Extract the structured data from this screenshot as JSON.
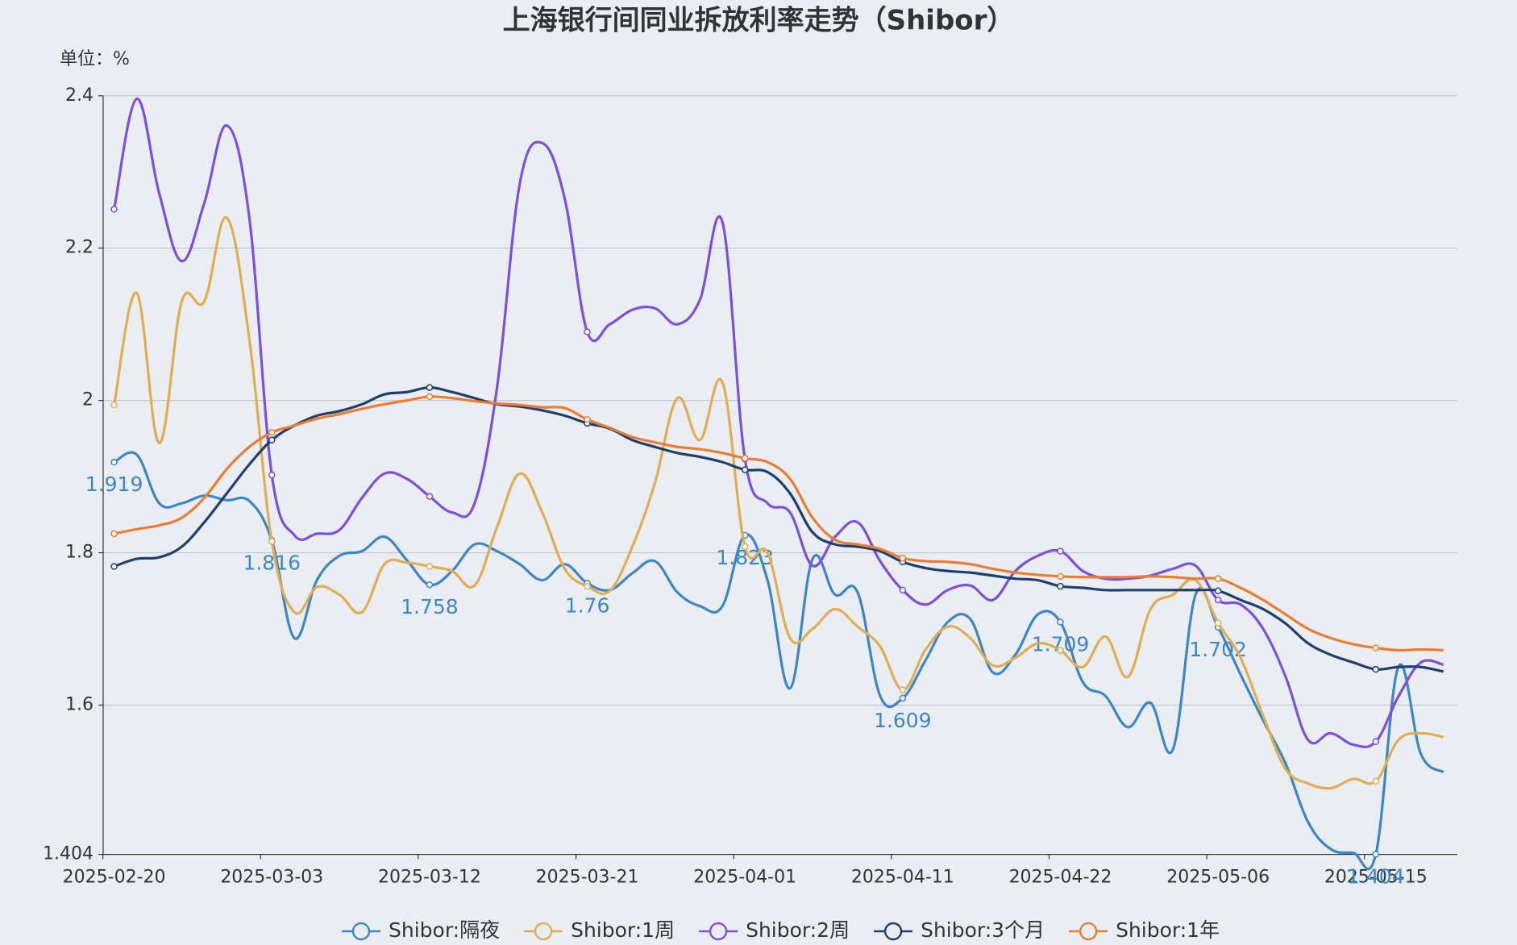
{
  "chart_data": {
    "type": "line",
    "title": "上海银行间同业拆放利率走势（Shibor）",
    "y_label": "单位：%",
    "categories": [
      "2025-02-20",
      null,
      null,
      null,
      null,
      null,
      null,
      "2025-03-03",
      null,
      null,
      null,
      null,
      null,
      null,
      "2025-03-12",
      null,
      null,
      null,
      null,
      null,
      null,
      "2025-03-21",
      null,
      null,
      null,
      null,
      null,
      null,
      "2025-04-01",
      null,
      null,
      null,
      null,
      null,
      null,
      "2025-04-11",
      null,
      null,
      null,
      null,
      null,
      null,
      "2025-04-22",
      null,
      null,
      null,
      null,
      null,
      null,
      "2025-05-06",
      null,
      null,
      null,
      null,
      null,
      null,
      "2025-05-15",
      null,
      null,
      null
    ],
    "ylim": [
      1.404,
      2.4
    ],
    "yticks": [
      1.404,
      1.6,
      1.8,
      2,
      2.2,
      2.4
    ],
    "grid": true,
    "legend": "bottom",
    "series": [
      {
        "name": "Shibor:隔夜",
        "color": "#3d86c6",
        "labels": true,
        "values": [
          1.919,
          1.929,
          1.865,
          1.865,
          1.875,
          1.869,
          1.868,
          1.816,
          1.688,
          1.764,
          1.796,
          1.802,
          1.821,
          1.79,
          1.758,
          1.776,
          1.811,
          1.802,
          1.785,
          1.764,
          1.785,
          1.76,
          1.751,
          1.773,
          1.789,
          1.748,
          1.73,
          1.73,
          1.823,
          1.764,
          1.622,
          1.792,
          1.745,
          1.748,
          1.612,
          1.609,
          1.658,
          1.709,
          1.713,
          1.643,
          1.666,
          1.719,
          1.709,
          1.63,
          1.612,
          1.571,
          1.603,
          1.542,
          1.745,
          1.702,
          1.64,
          1.58,
          1.523,
          1.446,
          1.411,
          1.406,
          1.404,
          1.65,
          1.536,
          1.512
        ]
      },
      {
        "name": "Shibor:1周",
        "color": "#e0ad52",
        "values": [
          1.994,
          2.141,
          1.944,
          2.13,
          2.13,
          2.24,
          2.081,
          1.815,
          1.722,
          1.755,
          1.745,
          1.722,
          1.785,
          1.787,
          1.782,
          1.776,
          1.757,
          1.834,
          1.904,
          1.853,
          1.779,
          1.756,
          1.75,
          1.808,
          1.891,
          2.003,
          1.948,
          2.024,
          1.808,
          1.8,
          1.688,
          1.7,
          1.726,
          1.703,
          1.677,
          1.62,
          1.672,
          1.703,
          1.688,
          1.652,
          1.662,
          1.681,
          1.672,
          1.65,
          1.69,
          1.637,
          1.726,
          1.745,
          1.764,
          1.708,
          1.662,
          1.586,
          1.516,
          1.497,
          1.491,
          1.503,
          1.5,
          1.554,
          1.563,
          1.558
        ]
      },
      {
        "name": "Shibor:2周",
        "color": "#7b50dd",
        "values": [
          2.251,
          2.396,
          2.272,
          2.183,
          2.259,
          2.361,
          2.24,
          1.902,
          1.823,
          1.825,
          1.83,
          1.872,
          1.904,
          1.897,
          1.874,
          1.853,
          1.865,
          2.018,
          2.284,
          2.338,
          2.265,
          2.09,
          2.1,
          2.119,
          2.121,
          2.1,
          2.132,
          2.234,
          1.923,
          1.865,
          1.853,
          1.783,
          1.821,
          1.84,
          1.789,
          1.751,
          1.732,
          1.751,
          1.757,
          1.738,
          1.776,
          1.796,
          1.802,
          1.776,
          1.766,
          1.766,
          1.77,
          1.779,
          1.783,
          1.738,
          1.732,
          1.7,
          1.637,
          1.554,
          1.563,
          1.548,
          1.552,
          1.611,
          1.656,
          1.653
        ]
      },
      {
        "name": "Shibor:3个月",
        "color": "#1f3f6e",
        "values": [
          1.782,
          1.792,
          1.794,
          1.808,
          1.84,
          1.878,
          1.916,
          1.948,
          1.967,
          1.98,
          1.986,
          1.995,
          2.008,
          2.011,
          2.017,
          2.011,
          2.003,
          1.995,
          1.992,
          1.987,
          1.98,
          1.97,
          1.963,
          1.948,
          1.939,
          1.931,
          1.926,
          1.919,
          1.909,
          1.906,
          1.878,
          1.827,
          1.811,
          1.808,
          1.802,
          1.788,
          1.78,
          1.776,
          1.774,
          1.77,
          1.766,
          1.764,
          1.756,
          1.754,
          1.751,
          1.751,
          1.751,
          1.751,
          1.751,
          1.75,
          1.738,
          1.726,
          1.707,
          1.681,
          1.666,
          1.656,
          1.647,
          1.65,
          1.65,
          1.644
        ]
      },
      {
        "name": "Shibor:1年",
        "color": "#ea7d32",
        "values": [
          1.825,
          1.831,
          1.836,
          1.846,
          1.872,
          1.91,
          1.939,
          1.958,
          1.967,
          1.976,
          1.982,
          1.989,
          1.995,
          2.0,
          2.005,
          2.003,
          1.999,
          1.996,
          1.994,
          1.991,
          1.99,
          1.975,
          1.964,
          1.952,
          1.945,
          1.939,
          1.936,
          1.931,
          1.924,
          1.919,
          1.897,
          1.846,
          1.817,
          1.811,
          1.805,
          1.793,
          1.789,
          1.788,
          1.785,
          1.779,
          1.774,
          1.771,
          1.769,
          1.768,
          1.768,
          1.768,
          1.769,
          1.768,
          1.766,
          1.766,
          1.754,
          1.738,
          1.719,
          1.7,
          1.688,
          1.68,
          1.675,
          1.672,
          1.673,
          1.672
        ]
      }
    ]
  }
}
